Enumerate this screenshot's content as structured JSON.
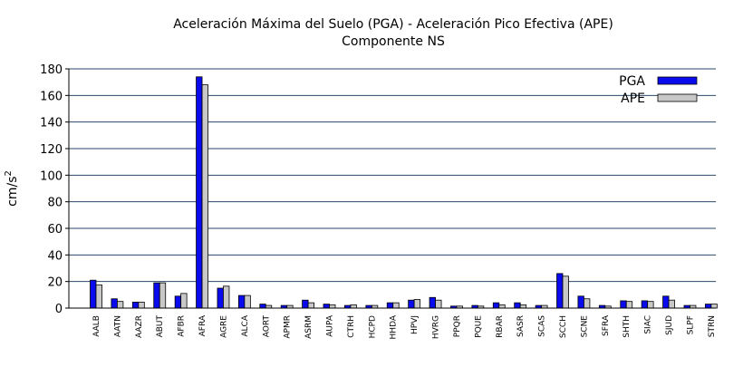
{
  "chart_data": {
    "type": "bar",
    "title": "Aceleración Máxima del Suelo (PGA) -  Aceleración Pico Efectiva (APE)",
    "subtitle": "Componente NS",
    "xlabel": "",
    "ylabel": "cm/s",
    "ylabel_superscript": "2",
    "ylim": [
      0,
      180
    ],
    "yticks": [
      "0",
      "20",
      "40",
      "60",
      "80",
      "100",
      "120",
      "140",
      "160",
      "180"
    ],
    "grid": true,
    "legend_placement": "top-right",
    "categories": [
      "AALB",
      "AATN",
      "AAZR",
      "ABUT",
      "AFBR",
      "AFRA",
      "AGRE",
      "ALCA",
      "AORT",
      "APMR",
      "ASRM",
      "AUPA",
      "CTRH",
      "HCPD",
      "HHDA",
      "HPVJ",
      "HVRG",
      "PPQR",
      "PQUE",
      "RBAR",
      "SASR",
      "SCAS",
      "SCCH",
      "SCNE",
      "SFRA",
      "SHTH",
      "SIAC",
      "SJUD",
      "SLPF",
      "STRN"
    ],
    "series": [
      {
        "name": "PGA",
        "color": "#0a0aee",
        "values": [
          21,
          7,
          4.5,
          19,
          9,
          174,
          15,
          9.5,
          3,
          2,
          6,
          3,
          2,
          2,
          4,
          6,
          8,
          1.5,
          2,
          4,
          4,
          2,
          26,
          9,
          2,
          5.5,
          5.5,
          9,
          2,
          3
        ]
      },
      {
        "name": "APE",
        "color": "#c8c8c8",
        "values": [
          17.5,
          5,
          4.5,
          19,
          11,
          168,
          16.5,
          9.5,
          2,
          2,
          4,
          2.5,
          2.5,
          2,
          4,
          6.5,
          6,
          1.5,
          1.5,
          2.5,
          2.5,
          2,
          24,
          7,
          1.5,
          5,
          5,
          6,
          2,
          3
        ]
      }
    ]
  }
}
